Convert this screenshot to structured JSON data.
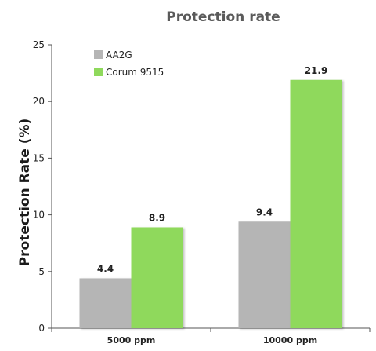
{
  "chart_data": {
    "type": "bar",
    "title": "Protection rate",
    "ylabel": "Protection Rate (%)",
    "xlabel": "",
    "categories": [
      "5000 ppm",
      "10000 ppm"
    ],
    "series": [
      {
        "name": "AA2G",
        "values": [
          4.4,
          9.4
        ],
        "color": "#b5b5b5"
      },
      {
        "name": "Corum 9515",
        "values": [
          8.9,
          21.9
        ],
        "color": "#8fd95c"
      }
    ],
    "data_labels": [
      [
        "4.4",
        "9.4"
      ],
      [
        "8.9",
        "21.9"
      ]
    ],
    "ylim": [
      0,
      25
    ],
    "yticks": [
      0,
      5,
      10,
      15,
      20,
      25
    ],
    "grid": false,
    "legend_position": "top-left"
  }
}
